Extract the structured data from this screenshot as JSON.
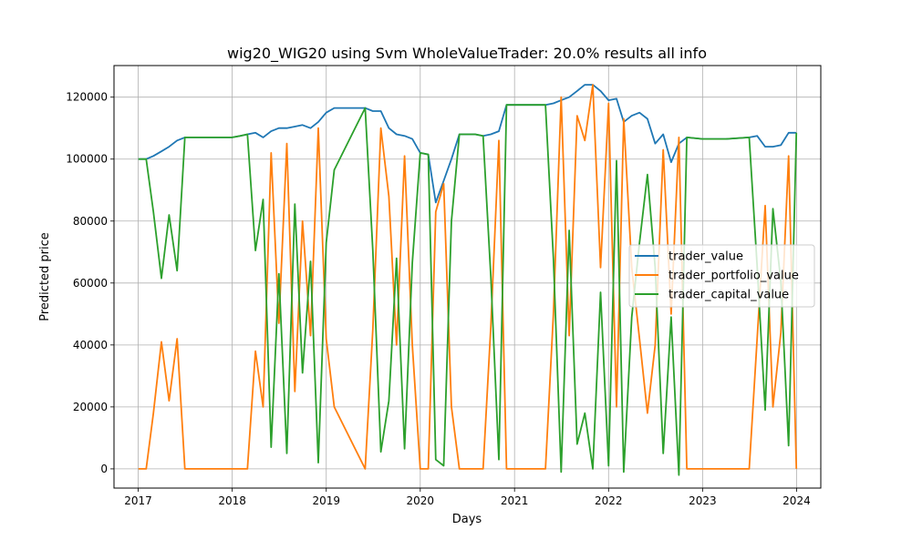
{
  "chart_data": {
    "type": "line",
    "title": "wig20_WIG20 using Svm WholeValueTrader: 20.0% results all info",
    "xlabel": "Days",
    "ylabel": "Predicted price",
    "xlim": [
      "2016-09-29",
      "2024-04-04"
    ],
    "ylim": [
      -6200,
      130200
    ],
    "x_ticks": [
      "2017",
      "2018",
      "2019",
      "2020",
      "2021",
      "2022",
      "2023",
      "2024"
    ],
    "y_ticks": [
      0,
      20000,
      40000,
      60000,
      80000,
      100000,
      120000
    ],
    "grid": true,
    "legend": {
      "position": "center-right",
      "entries": [
        "trader_value",
        "trader_portfolio_value",
        "trader_capital_value"
      ]
    },
    "colors": {
      "trader_value": "#1f77b4",
      "trader_portfolio_value": "#ff7f0e",
      "trader_capital_value": "#2ca02c",
      "grid": "#b0b0b0"
    },
    "series": [
      {
        "name": "trader_value",
        "x": [
          "2017-01-02",
          "2017-02-01",
          "2017-03-01",
          "2017-04-01",
          "2017-05-01",
          "2017-06-01",
          "2017-07-01",
          "2017-11-15",
          "2018-01-01",
          "2018-02-01",
          "2018-03-01",
          "2018-04-01",
          "2018-05-01",
          "2018-06-01",
          "2018-07-01",
          "2018-08-01",
          "2018-09-01",
          "2018-10-01",
          "2018-11-01",
          "2018-12-01",
          "2019-01-01",
          "2019-02-01",
          "2019-06-01",
          "2019-07-01",
          "2019-08-01",
          "2019-09-01",
          "2019-10-01",
          "2019-11-01",
          "2019-12-01",
          "2020-01-01",
          "2020-02-01",
          "2020-03-01",
          "2020-04-01",
          "2020-05-01",
          "2020-06-01",
          "2020-08-01",
          "2020-09-01",
          "2020-10-01",
          "2020-11-01",
          "2020-12-01",
          "2021-03-01",
          "2021-05-01",
          "2021-06-01",
          "2021-07-01",
          "2021-08-01",
          "2021-09-01",
          "2021-10-01",
          "2021-11-01",
          "2021-12-01",
          "2022-01-01",
          "2022-02-01",
          "2022-03-01",
          "2022-04-01",
          "2022-05-01",
          "2022-06-01",
          "2022-07-01",
          "2022-08-01",
          "2022-09-01",
          "2022-10-01",
          "2022-11-01",
          "2023-01-01",
          "2023-04-01",
          "2023-07-01",
          "2023-08-01",
          "2023-09-01",
          "2023-10-01",
          "2023-11-01",
          "2023-12-01",
          "2023-12-31"
        ],
        "values": [
          100000,
          100000,
          101000,
          102500,
          104000,
          106000,
          107000,
          107000,
          107000,
          107500,
          108000,
          108500,
          107000,
          109000,
          110000,
          110000,
          110500,
          111000,
          110000,
          112000,
          115000,
          116500,
          116500,
          115500,
          115500,
          110000,
          108000,
          107500,
          106500,
          102000,
          101500,
          86000,
          93000,
          100000,
          108000,
          108000,
          107500,
          108000,
          109000,
          117500,
          117500,
          117500,
          118000,
          119000,
          120000,
          122000,
          124000,
          124000,
          122000,
          119000,
          119500,
          112000,
          114000,
          115000,
          113000,
          105000,
          108000,
          99000,
          105000,
          107000,
          106500,
          106500,
          107000,
          107500,
          104000,
          104000,
          104500,
          108500,
          108500
        ]
      },
      {
        "name": "trader_portfolio_value",
        "x": [
          "2017-01-02",
          "2017-02-01",
          "2017-03-01",
          "2017-04-01",
          "2017-05-01",
          "2017-06-01",
          "2017-07-01",
          "2017-11-15",
          "2018-01-01",
          "2018-02-01",
          "2018-03-01",
          "2018-04-01",
          "2018-05-01",
          "2018-06-01",
          "2018-07-01",
          "2018-08-01",
          "2018-09-01",
          "2018-10-01",
          "2018-11-01",
          "2018-12-01",
          "2019-01-01",
          "2019-02-01",
          "2019-06-01",
          "2019-07-01",
          "2019-08-01",
          "2019-09-01",
          "2019-10-01",
          "2019-11-01",
          "2019-12-01",
          "2020-01-01",
          "2020-02-01",
          "2020-03-01",
          "2020-04-01",
          "2020-05-01",
          "2020-06-01",
          "2020-08-01",
          "2020-09-01",
          "2020-10-01",
          "2020-11-01",
          "2020-12-01",
          "2021-03-01",
          "2021-05-01",
          "2021-06-01",
          "2021-07-01",
          "2021-08-01",
          "2021-09-01",
          "2021-10-01",
          "2021-11-01",
          "2021-12-01",
          "2022-01-01",
          "2022-02-01",
          "2022-03-01",
          "2022-04-01",
          "2022-05-01",
          "2022-06-01",
          "2022-07-01",
          "2022-08-01",
          "2022-09-01",
          "2022-10-01",
          "2022-11-01",
          "2023-01-01",
          "2023-04-01",
          "2023-07-01",
          "2023-08-01",
          "2023-09-01",
          "2023-10-01",
          "2023-11-01",
          "2023-12-01",
          "2023-12-31"
        ],
        "values": [
          0,
          0,
          18000,
          41000,
          22000,
          42000,
          0,
          0,
          0,
          0,
          0,
          38000,
          20000,
          102000,
          47000,
          105000,
          25000,
          80000,
          43000,
          110000,
          42000,
          20000,
          0,
          45000,
          110000,
          88000,
          40000,
          101000,
          40000,
          0,
          0,
          83000,
          92000,
          20000,
          0,
          0,
          0,
          46000,
          106000,
          0,
          0,
          0,
          50000,
          120000,
          43000,
          114000,
          106000,
          124000,
          65000,
          118000,
          20000,
          113000,
          65000,
          42000,
          18000,
          40000,
          103000,
          50000,
          107000,
          0,
          0,
          0,
          0,
          42000,
          85000,
          20000,
          44000,
          101000,
          0
        ]
      },
      {
        "name": "trader_capital_value",
        "x": [
          "2017-01-02",
          "2017-02-01",
          "2017-03-01",
          "2017-04-01",
          "2017-05-01",
          "2017-06-01",
          "2017-07-01",
          "2017-11-15",
          "2018-01-01",
          "2018-02-01",
          "2018-03-01",
          "2018-04-01",
          "2018-05-01",
          "2018-06-01",
          "2018-07-01",
          "2018-08-01",
          "2018-09-01",
          "2018-10-01",
          "2018-11-01",
          "2018-12-01",
          "2019-01-01",
          "2019-02-01",
          "2019-06-01",
          "2019-07-01",
          "2019-08-01",
          "2019-09-01",
          "2019-10-01",
          "2019-11-01",
          "2019-12-01",
          "2020-01-01",
          "2020-02-01",
          "2020-03-01",
          "2020-04-01",
          "2020-05-01",
          "2020-06-01",
          "2020-08-01",
          "2020-09-01",
          "2020-10-01",
          "2020-11-01",
          "2020-12-01",
          "2021-03-01",
          "2021-05-01",
          "2021-06-01",
          "2021-07-01",
          "2021-08-01",
          "2021-09-01",
          "2021-10-01",
          "2021-11-01",
          "2021-12-01",
          "2022-01-01",
          "2022-02-01",
          "2022-03-01",
          "2022-04-01",
          "2022-05-01",
          "2022-06-01",
          "2022-07-01",
          "2022-08-01",
          "2022-09-01",
          "2022-10-01",
          "2022-11-01",
          "2023-01-01",
          "2023-04-01",
          "2023-07-01",
          "2023-08-01",
          "2023-09-01",
          "2023-10-01",
          "2023-11-01",
          "2023-12-01",
          "2023-12-31"
        ],
        "values": [
          100000,
          100000,
          83000,
          61500,
          82000,
          64000,
          107000,
          107000,
          107000,
          107500,
          108000,
          70500,
          87000,
          7000,
          63000,
          5000,
          85500,
          31000,
          67000,
          2000,
          73000,
          96500,
          116500,
          70500,
          5500,
          22000,
          68000,
          6500,
          66500,
          102000,
          101500,
          3000,
          1000,
          80000,
          108000,
          108000,
          107500,
          62000,
          3000,
          117500,
          117500,
          117500,
          68000,
          -1000,
          77000,
          8000,
          18000,
          0,
          57000,
          1000,
          99500,
          -1000,
          49000,
          73000,
          95000,
          65000,
          5000,
          49000,
          -2000,
          107000,
          106500,
          106500,
          107000,
          65500,
          19000,
          84000,
          60500,
          7500,
          108500
        ]
      }
    ]
  }
}
